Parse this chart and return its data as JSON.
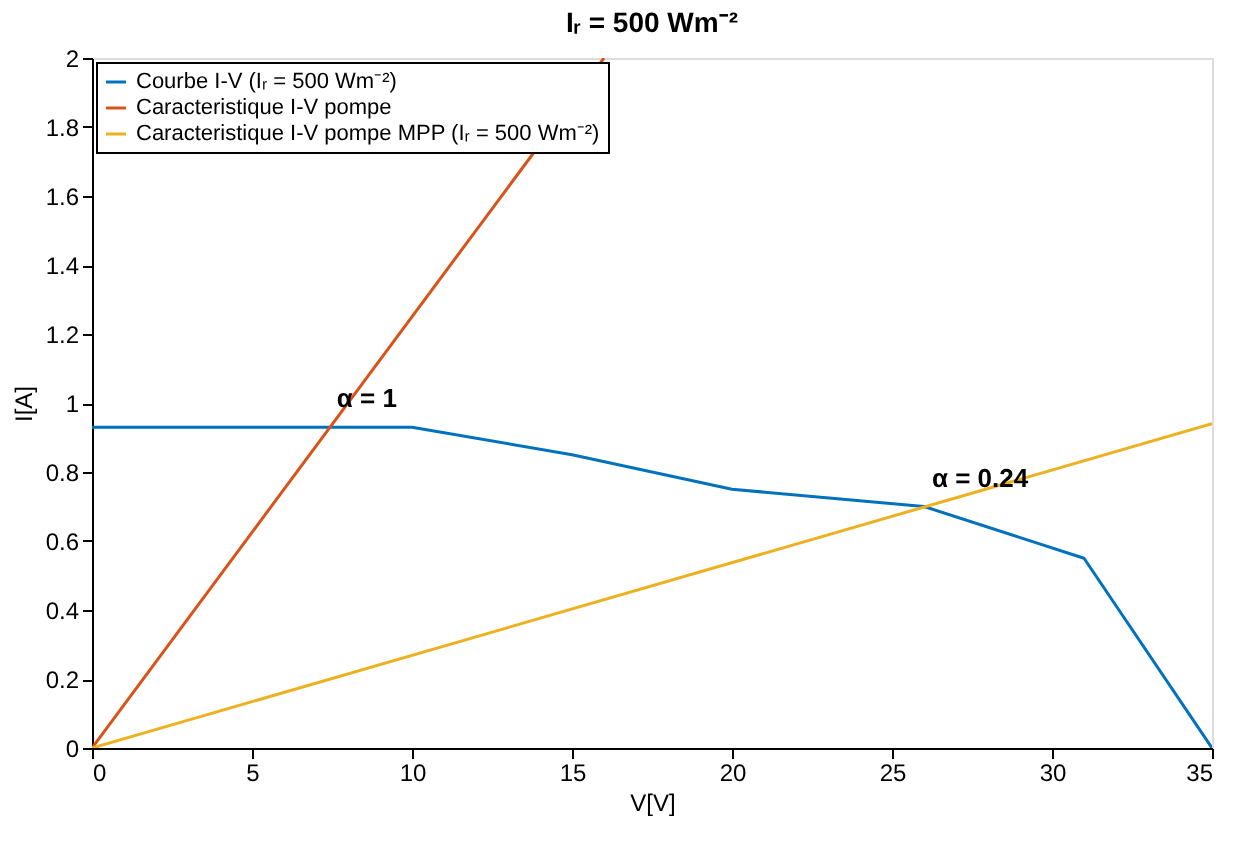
{
  "chart_data": {
    "type": "line",
    "title": "Iᵣ = 500 Wm⁻²",
    "xlabel": "V[V]",
    "ylabel": "I[A]",
    "xlim": [
      0,
      35
    ],
    "xticks": [
      0,
      5,
      10,
      15,
      20,
      25,
      30,
      35
    ],
    "ylim": [
      0,
      2
    ],
    "yticks": [
      0,
      0.2,
      0.4,
      0.6,
      0.8,
      1,
      1.2,
      1.4,
      1.6,
      1.8,
      2
    ],
    "grid": false,
    "legend": "top left",
    "marker": "none",
    "line_style": "solid",
    "series": [
      {
        "name": "Courbe I-V (Iᵣ = 500 Wm⁻²)",
        "color": "#0072bd",
        "x": [
          0,
          10,
          15,
          20,
          26,
          31,
          35
        ],
        "values": [
          0.93,
          0.93,
          0.85,
          0.75,
          0.7,
          0.55,
          0
        ]
      },
      {
        "name": "Caracteristique I-V pompe",
        "color": "#d95319",
        "x": [
          0,
          16
        ],
        "values": [
          0,
          2
        ]
      },
      {
        "name": "Caracteristique I-V pompe MPP (Iᵣ = 500 Wm⁻²)",
        "color": "#edb120",
        "x": [
          0,
          35
        ],
        "values": [
          0,
          0.94
        ]
      }
    ],
    "annotations": [
      {
        "text": "α = 1",
        "x": 7.4,
        "y": 0.93
      },
      {
        "text": "α = 0.24",
        "x": 26,
        "y": 0.7
      }
    ]
  }
}
